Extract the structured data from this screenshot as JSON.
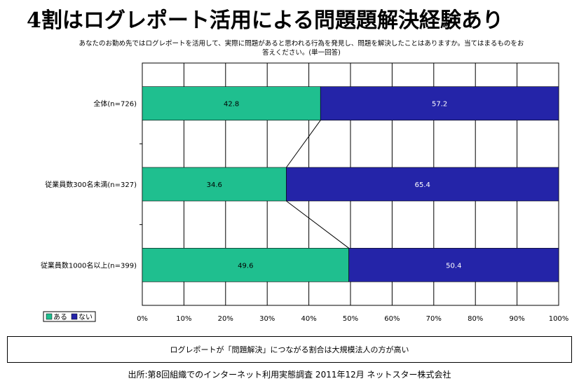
{
  "title": "4割はログレポート活用による問題題解決経験あり",
  "question": "あなたのお勤め先ではログレポートを活用して、実際に問題があると思われる行為を発見し、問題を解決したことはありますか。当てはまるものをお答えください。(単一回答)",
  "chart_data": {
    "type": "bar",
    "stacked": true,
    "orientation": "horizontal",
    "categories": [
      "全体(n=726)",
      "従業員数300名未満(n=327)",
      "従業員数1000名以上(n=399)"
    ],
    "series": [
      {
        "name": "ある",
        "values": [
          42.8,
          34.6,
          49.6
        ],
        "color": "#1fbf8f"
      },
      {
        "name": "ない",
        "values": [
          57.2,
          65.4,
          50.4
        ],
        "color": "#2424a8"
      }
    ],
    "xlim": [
      0,
      100
    ],
    "xticks": [
      "0%",
      "10%",
      "20%",
      "30%",
      "40%",
      "50%",
      "60%",
      "70%",
      "80%",
      "90%",
      "100%"
    ],
    "grid": true,
    "legend": "bottom-left",
    "connector_lines": true
  },
  "note": "ログレポートが「問題解決」につながる割合は大規模法人の方が高い",
  "source": "出所:第8回組織でのインターネット利用実態調査 2011年12月 ネットスター株式会社"
}
